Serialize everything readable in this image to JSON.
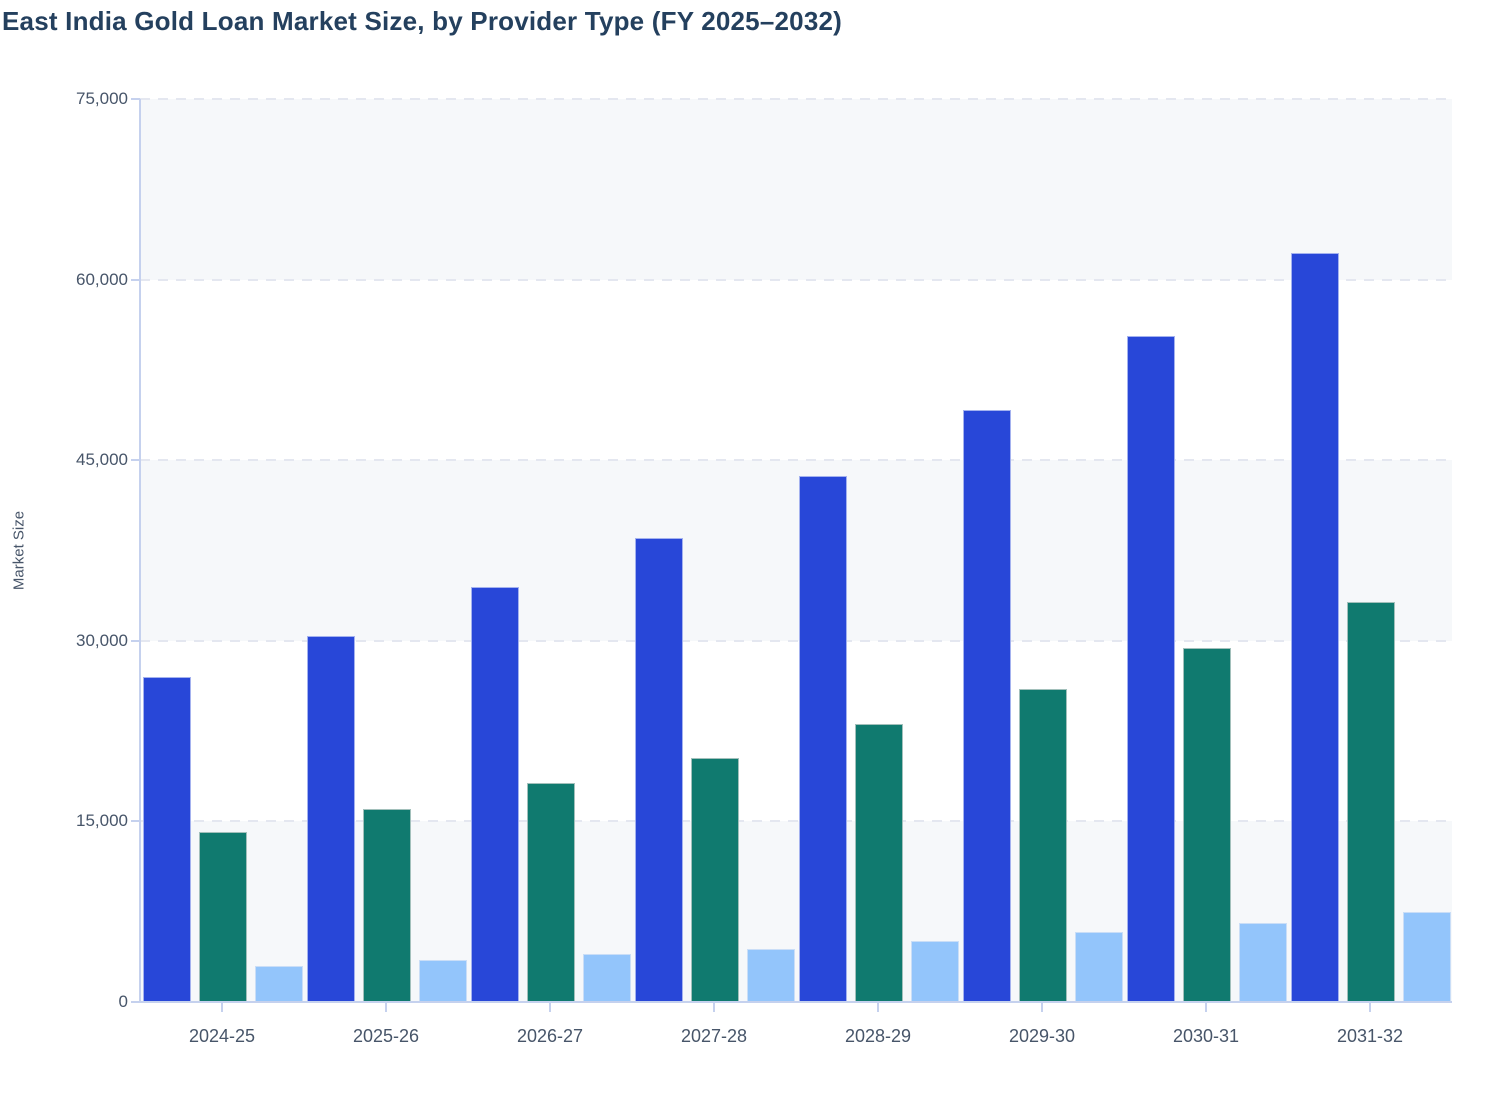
{
  "title": "East India Gold Loan Market Size, by Provider Type (FY 2025–2032)",
  "chart_data": {
    "type": "bar",
    "title": "East India Gold Loan Market Size, by Provider Type (FY 2025–2032)",
    "xlabel": "",
    "ylabel": "Market Size",
    "ylim": [
      0,
      75000
    ],
    "yticks": [
      0,
      15000,
      30000,
      45000,
      60000,
      75000
    ],
    "ytick_labels": [
      "0",
      "15,000",
      "30,000",
      "45,000",
      "60,000",
      "75,000"
    ],
    "grid": "horizontal-dashed",
    "legend": "none",
    "background_bands": "alternating light bands between gridlines",
    "categories": [
      "2024-25",
      "2025-26",
      "2026-27",
      "2027-28",
      "2028-29",
      "2029-30",
      "2030-31",
      "2031-32"
    ],
    "series": [
      {
        "name": "series-1-dark-blue",
        "color": "#2847d8",
        "edge_color": "#a4b2ef",
        "values": [
          27000,
          30400,
          34500,
          38500,
          43700,
          49200,
          55300,
          62200
        ]
      },
      {
        "name": "series-2-teal",
        "color": "#107a6f",
        "edge_color": "#a2c0bb",
        "values": [
          14100,
          16000,
          18200,
          20300,
          23100,
          26000,
          29400,
          33200
        ]
      },
      {
        "name": "series-3-light-blue",
        "color": "#93c5fb",
        "edge_color": "#cadef7",
        "values": [
          3000,
          3500,
          4000,
          4400,
          5100,
          5800,
          6600,
          7500
        ]
      }
    ]
  },
  "palette": {
    "title_color": "#24405e",
    "tick_label_color": "#475569",
    "axis_line_color": "#c5d1ee",
    "gridline_color": "#e4e7f0",
    "band_color": "#f6f8fa",
    "page_background": "#ffffff"
  }
}
